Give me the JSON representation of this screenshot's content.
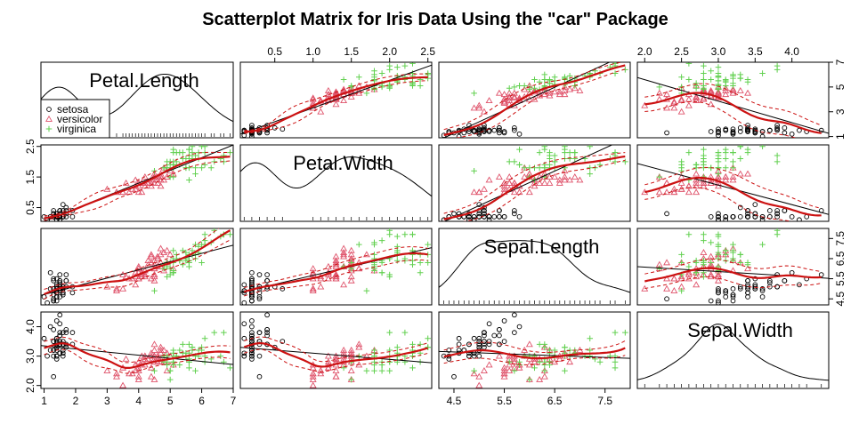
{
  "chart_data": {
    "type": "scatter",
    "title": "Scatterplot Matrix for Iris Data Using the \"car\" Package",
    "variables": [
      "Petal.Length",
      "Petal.Width",
      "Sepal.Length",
      "Sepal.Width"
    ],
    "ranges": {
      "Petal.Length": [
        0.9,
        7.0
      ],
      "Petal.Width": [
        0.05,
        2.55
      ],
      "Sepal.Length": [
        4.2,
        8.0
      ],
      "Sepal.Width": [
        1.9,
        4.5
      ]
    },
    "ticks": {
      "Petal.Length": {
        "values": [
          1,
          2,
          3,
          4,
          5,
          6,
          7
        ],
        "labels": [
          "1",
          "2",
          "3",
          "4",
          "5",
          "6",
          "7"
        ]
      },
      "Petal.Width": {
        "values": [
          0.5,
          1.0,
          1.5,
          2.0,
          2.5
        ],
        "labels": [
          "0.5",
          "1.0",
          "1.5",
          "2.0",
          "2.5"
        ]
      },
      "Sepal.Length": {
        "values": [
          4.5,
          5.5,
          6.5,
          7.5
        ],
        "labels": [
          "4.5",
          "5.5",
          "6.5",
          "7.5"
        ]
      },
      "Sepal.Width": {
        "values": [
          2.0,
          2.5,
          3.0,
          3.5,
          4.0
        ],
        "labels": [
          "2.0",
          "2.5",
          "3.0",
          "3.5",
          "4.0"
        ]
      }
    },
    "right_tick_labels": {
      "Petal.Length": {
        "values": [
          1,
          3,
          5,
          7
        ],
        "labels": [
          "1",
          "3",
          "5",
          "7"
        ]
      },
      "Sepal.Length": {
        "values": [
          4.5,
          5.5,
          6.5,
          7.5
        ],
        "labels": [
          "4.5",
          "5.5",
          "6.5",
          "7.5"
        ]
      }
    },
    "left_tick_labels": {
      "Petal.Width": {
        "values": [
          0.5,
          1.5,
          2.5
        ],
        "labels": [
          "0.5",
          "1.5",
          "2.5"
        ]
      },
      "Sepal.Width": {
        "values": [
          2.0,
          3.0,
          4.0
        ],
        "labels": [
          "2.0",
          "3.0",
          "4.0"
        ]
      }
    },
    "legend": {
      "placement": "bottom-left of first panel",
      "entries": [
        {
          "label": "setosa",
          "marker": "circle",
          "color": "#000000"
        },
        {
          "label": "versicolor",
          "marker": "triangle",
          "color": "#df536b"
        },
        {
          "label": "virginica",
          "marker": "plus",
          "color": "#61d04f"
        }
      ]
    },
    "colors": {
      "regression_line": "#000000",
      "smoother": "#cc1111",
      "smoother_band": "#cc1111"
    },
    "series": [
      {
        "name": "setosa",
        "points": [
          [
            5.1,
            3.5,
            1.4,
            0.2
          ],
          [
            4.9,
            3.0,
            1.4,
            0.2
          ],
          [
            4.7,
            3.2,
            1.3,
            0.2
          ],
          [
            4.6,
            3.1,
            1.5,
            0.2
          ],
          [
            5.0,
            3.6,
            1.4,
            0.2
          ],
          [
            5.4,
            3.9,
            1.7,
            0.4
          ],
          [
            4.6,
            3.4,
            1.4,
            0.3
          ],
          [
            5.0,
            3.4,
            1.5,
            0.2
          ],
          [
            4.4,
            2.9,
            1.4,
            0.2
          ],
          [
            4.9,
            3.1,
            1.5,
            0.1
          ],
          [
            5.4,
            3.7,
            1.5,
            0.2
          ],
          [
            4.8,
            3.4,
            1.6,
            0.2
          ],
          [
            4.8,
            3.0,
            1.4,
            0.1
          ],
          [
            4.3,
            3.0,
            1.1,
            0.1
          ],
          [
            5.8,
            4.0,
            1.2,
            0.2
          ],
          [
            5.7,
            4.4,
            1.5,
            0.4
          ],
          [
            5.4,
            3.9,
            1.3,
            0.4
          ],
          [
            5.1,
            3.5,
            1.4,
            0.3
          ],
          [
            5.7,
            3.8,
            1.7,
            0.3
          ],
          [
            5.1,
            3.8,
            1.5,
            0.3
          ],
          [
            5.4,
            3.4,
            1.7,
            0.2
          ],
          [
            5.1,
            3.7,
            1.5,
            0.4
          ],
          [
            4.6,
            3.6,
            1.0,
            0.2
          ],
          [
            5.1,
            3.3,
            1.7,
            0.5
          ],
          [
            4.8,
            3.4,
            1.9,
            0.2
          ],
          [
            5.0,
            3.0,
            1.6,
            0.2
          ],
          [
            5.0,
            3.4,
            1.6,
            0.4
          ],
          [
            5.2,
            3.5,
            1.5,
            0.2
          ],
          [
            5.2,
            3.4,
            1.4,
            0.2
          ],
          [
            4.7,
            3.2,
            1.6,
            0.2
          ],
          [
            4.8,
            3.1,
            1.6,
            0.2
          ],
          [
            5.4,
            3.4,
            1.5,
            0.4
          ],
          [
            5.2,
            4.1,
            1.5,
            0.1
          ],
          [
            5.5,
            4.2,
            1.4,
            0.2
          ],
          [
            4.9,
            3.1,
            1.5,
            0.2
          ],
          [
            5.0,
            3.2,
            1.2,
            0.2
          ],
          [
            5.5,
            3.5,
            1.3,
            0.2
          ],
          [
            4.9,
            3.6,
            1.4,
            0.1
          ],
          [
            4.4,
            3.0,
            1.3,
            0.2
          ],
          [
            5.1,
            3.4,
            1.5,
            0.2
          ],
          [
            5.0,
            3.5,
            1.3,
            0.3
          ],
          [
            4.5,
            2.3,
            1.3,
            0.3
          ],
          [
            4.4,
            3.2,
            1.3,
            0.2
          ],
          [
            5.0,
            3.5,
            1.6,
            0.6
          ],
          [
            5.1,
            3.8,
            1.9,
            0.4
          ],
          [
            4.8,
            3.0,
            1.4,
            0.3
          ],
          [
            5.1,
            3.8,
            1.6,
            0.2
          ],
          [
            4.6,
            3.2,
            1.4,
            0.2
          ],
          [
            5.3,
            3.7,
            1.5,
            0.2
          ],
          [
            5.0,
            3.3,
            1.4,
            0.2
          ]
        ]
      },
      {
        "name": "versicolor",
        "points": [
          [
            7.0,
            3.2,
            4.7,
            1.4
          ],
          [
            6.4,
            3.2,
            4.5,
            1.5
          ],
          [
            6.9,
            3.1,
            4.9,
            1.5
          ],
          [
            5.5,
            2.3,
            4.0,
            1.3
          ],
          [
            6.5,
            2.8,
            4.6,
            1.5
          ],
          [
            5.7,
            2.8,
            4.5,
            1.3
          ],
          [
            6.3,
            3.3,
            4.7,
            1.6
          ],
          [
            4.9,
            2.4,
            3.3,
            1.0
          ],
          [
            6.6,
            2.9,
            4.6,
            1.3
          ],
          [
            5.2,
            2.7,
            3.9,
            1.4
          ],
          [
            5.0,
            2.0,
            3.5,
            1.0
          ],
          [
            5.9,
            3.0,
            4.2,
            1.5
          ],
          [
            6.0,
            2.2,
            4.0,
            1.0
          ],
          [
            6.1,
            2.9,
            4.7,
            1.4
          ],
          [
            5.6,
            2.9,
            3.6,
            1.3
          ],
          [
            6.7,
            3.1,
            4.4,
            1.4
          ],
          [
            5.6,
            3.0,
            4.5,
            1.5
          ],
          [
            5.8,
            2.7,
            4.1,
            1.0
          ],
          [
            6.2,
            2.2,
            4.5,
            1.5
          ],
          [
            5.6,
            2.5,
            3.9,
            1.1
          ],
          [
            5.9,
            3.2,
            4.8,
            1.8
          ],
          [
            6.1,
            2.8,
            4.0,
            1.3
          ],
          [
            6.3,
            2.5,
            4.9,
            1.5
          ],
          [
            6.1,
            2.8,
            4.7,
            1.2
          ],
          [
            6.4,
            2.9,
            4.3,
            1.3
          ],
          [
            6.6,
            3.0,
            4.4,
            1.4
          ],
          [
            6.8,
            2.8,
            4.8,
            1.4
          ],
          [
            6.7,
            3.0,
            5.0,
            1.7
          ],
          [
            6.0,
            2.9,
            4.5,
            1.5
          ],
          [
            5.7,
            2.6,
            3.5,
            1.0
          ],
          [
            5.5,
            2.4,
            3.8,
            1.1
          ],
          [
            5.5,
            2.4,
            3.7,
            1.0
          ],
          [
            5.8,
            2.7,
            3.9,
            1.2
          ],
          [
            6.0,
            2.7,
            5.1,
            1.6
          ],
          [
            5.4,
            3.0,
            4.5,
            1.5
          ],
          [
            6.0,
            3.4,
            4.5,
            1.6
          ],
          [
            6.7,
            3.1,
            4.7,
            1.5
          ],
          [
            6.3,
            2.3,
            4.4,
            1.3
          ],
          [
            5.6,
            3.0,
            4.1,
            1.3
          ],
          [
            5.5,
            2.5,
            4.0,
            1.3
          ],
          [
            5.5,
            2.6,
            4.4,
            1.2
          ],
          [
            6.1,
            3.0,
            4.6,
            1.4
          ],
          [
            5.8,
            2.6,
            4.0,
            1.2
          ],
          [
            5.0,
            2.3,
            3.3,
            1.0
          ],
          [
            5.6,
            2.7,
            4.2,
            1.3
          ],
          [
            5.7,
            3.0,
            4.2,
            1.2
          ],
          [
            5.7,
            2.9,
            4.2,
            1.3
          ],
          [
            6.2,
            2.9,
            4.3,
            1.3
          ],
          [
            5.1,
            2.5,
            3.0,
            1.1
          ],
          [
            5.7,
            2.8,
            4.1,
            1.3
          ]
        ]
      },
      {
        "name": "virginica",
        "points": [
          [
            6.3,
            3.3,
            6.0,
            2.5
          ],
          [
            5.8,
            2.7,
            5.1,
            1.9
          ],
          [
            7.1,
            3.0,
            5.9,
            2.1
          ],
          [
            6.3,
            2.9,
            5.6,
            1.8
          ],
          [
            6.5,
            3.0,
            5.8,
            2.2
          ],
          [
            7.6,
            3.0,
            6.6,
            2.1
          ],
          [
            4.9,
            2.5,
            4.5,
            1.7
          ],
          [
            7.3,
            2.9,
            6.3,
            1.8
          ],
          [
            6.7,
            2.5,
            5.8,
            1.8
          ],
          [
            7.2,
            3.6,
            6.1,
            2.5
          ],
          [
            6.5,
            3.2,
            5.1,
            2.0
          ],
          [
            6.4,
            2.7,
            5.3,
            1.9
          ],
          [
            6.8,
            3.0,
            5.5,
            2.1
          ],
          [
            5.7,
            2.5,
            5.0,
            2.0
          ],
          [
            5.8,
            2.8,
            5.1,
            2.4
          ],
          [
            6.4,
            3.2,
            5.3,
            2.3
          ],
          [
            6.5,
            3.0,
            5.5,
            1.8
          ],
          [
            7.7,
            3.8,
            6.7,
            2.2
          ],
          [
            7.7,
            2.6,
            6.9,
            2.3
          ],
          [
            6.0,
            2.2,
            5.0,
            1.5
          ],
          [
            6.9,
            3.2,
            5.7,
            2.3
          ],
          [
            5.6,
            2.8,
            4.9,
            2.0
          ],
          [
            7.7,
            2.8,
            6.7,
            2.0
          ],
          [
            6.3,
            2.7,
            4.9,
            1.8
          ],
          [
            6.7,
            3.3,
            5.7,
            2.1
          ],
          [
            7.2,
            3.2,
            6.0,
            1.8
          ],
          [
            6.2,
            2.8,
            4.8,
            1.8
          ],
          [
            6.1,
            3.0,
            4.9,
            1.8
          ],
          [
            6.4,
            2.8,
            5.6,
            2.1
          ],
          [
            7.2,
            3.0,
            5.8,
            1.6
          ],
          [
            7.4,
            2.8,
            6.1,
            1.9
          ],
          [
            7.9,
            3.8,
            6.4,
            2.0
          ],
          [
            6.4,
            2.8,
            5.6,
            2.2
          ],
          [
            6.3,
            2.8,
            5.1,
            1.5
          ],
          [
            6.1,
            2.6,
            5.6,
            1.4
          ],
          [
            7.7,
            3.0,
            6.1,
            2.3
          ],
          [
            6.3,
            3.4,
            5.6,
            2.4
          ],
          [
            6.4,
            3.1,
            5.5,
            1.8
          ],
          [
            6.0,
            3.0,
            4.8,
            1.8
          ],
          [
            6.9,
            3.1,
            5.4,
            2.1
          ],
          [
            6.7,
            3.1,
            5.6,
            2.4
          ],
          [
            6.9,
            3.1,
            5.1,
            2.3
          ],
          [
            5.8,
            2.7,
            5.1,
            1.9
          ],
          [
            6.8,
            3.2,
            5.9,
            2.3
          ],
          [
            6.7,
            3.3,
            5.7,
            2.5
          ],
          [
            6.7,
            3.0,
            5.2,
            2.3
          ],
          [
            6.3,
            2.5,
            5.0,
            1.9
          ],
          [
            6.5,
            3.0,
            5.2,
            2.0
          ],
          [
            6.2,
            3.4,
            5.4,
            2.3
          ],
          [
            5.9,
            3.0,
            5.1,
            1.8
          ]
        ]
      }
    ]
  }
}
